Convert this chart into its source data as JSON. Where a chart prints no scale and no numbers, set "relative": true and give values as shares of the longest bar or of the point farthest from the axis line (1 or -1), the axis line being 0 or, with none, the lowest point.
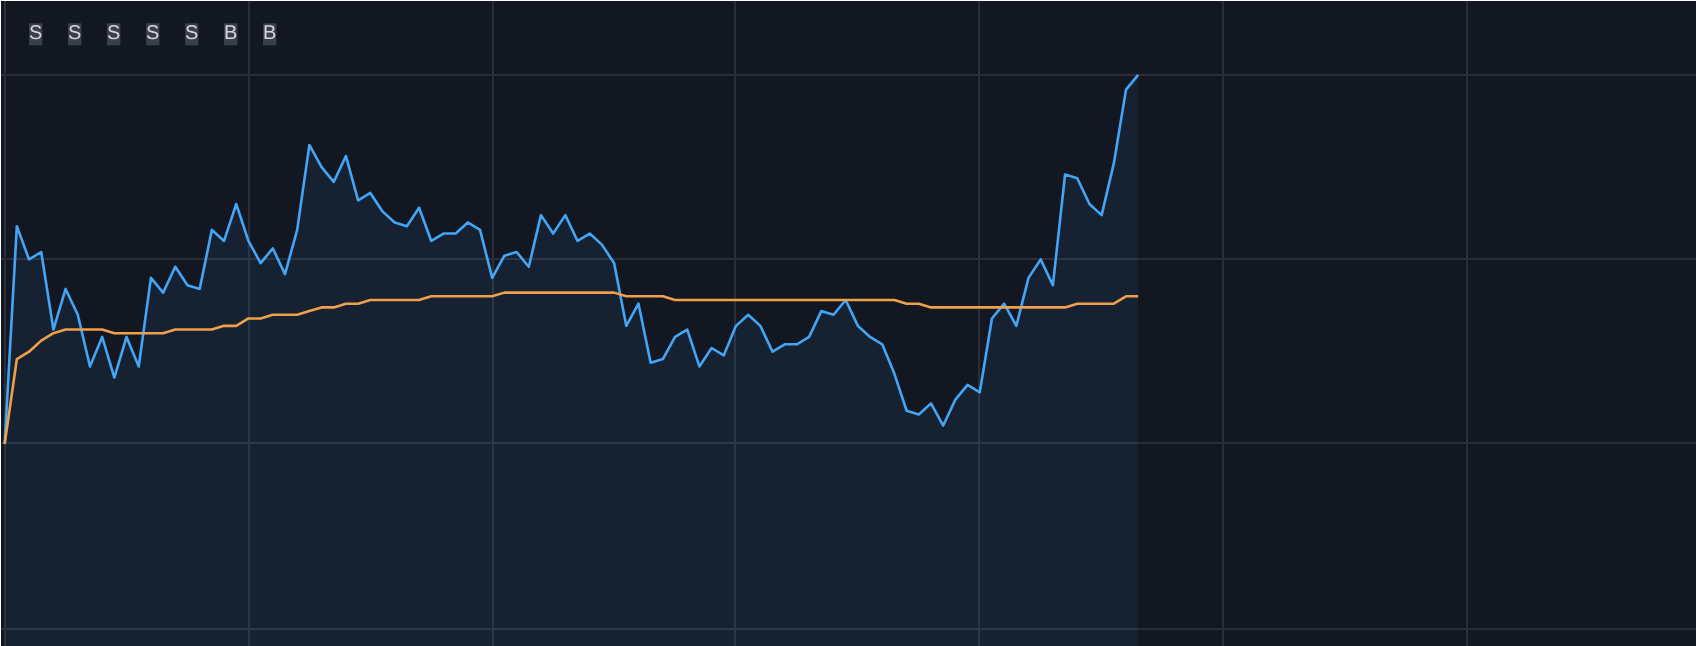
{
  "chart_data": {
    "type": "line",
    "relative": true,
    "grid": true,
    "tick_labels": false,
    "categories": [
      null,
      null,
      null,
      null,
      null,
      null,
      null,
      null,
      null,
      null,
      null,
      null,
      null,
      null,
      null,
      null,
      null,
      null,
      null,
      null,
      null,
      null,
      null,
      null,
      null,
      null,
      null,
      null,
      null,
      null,
      null,
      null,
      null,
      null,
      null,
      null,
      null,
      null,
      null,
      null,
      null,
      null,
      null,
      null,
      null,
      null,
      null,
      null,
      null,
      null,
      null,
      null,
      null,
      null,
      null,
      null,
      null,
      null,
      null,
      null,
      null,
      null,
      null,
      null,
      null,
      null,
      null,
      null,
      null,
      null,
      null,
      null,
      null,
      null,
      null,
      null,
      null,
      null,
      null,
      null,
      null,
      null,
      null,
      null,
      null,
      null,
      null,
      null,
      null,
      null,
      null,
      null,
      null,
      null
    ],
    "series": [
      {
        "type": "area",
        "color": "#42a5f5",
        "values": [
          0,
          0.59,
          0.5,
          0.52,
          0.31,
          0.42,
          0.35,
          0.21,
          0.29,
          0.18,
          0.29,
          0.21,
          0.45,
          0.41,
          0.48,
          0.43,
          0.42,
          0.58,
          0.55,
          0.65,
          0.55,
          0.49,
          0.53,
          0.46,
          0.58,
          0.81,
          0.75,
          0.71,
          0.78,
          0.66,
          0.68,
          0.63,
          0.6,
          0.59,
          0.64,
          0.55,
          0.57,
          0.57,
          0.6,
          0.58,
          0.45,
          0.51,
          0.52,
          0.48,
          0.62,
          0.57,
          0.62,
          0.55,
          0.57,
          0.54,
          0.49,
          0.32,
          0.38,
          0.22,
          0.23,
          0.29,
          0.31,
          0.21,
          0.26,
          0.24,
          0.32,
          0.35,
          0.32,
          0.25,
          0.27,
          0.27,
          0.29,
          0.36,
          0.35,
          0.39,
          0.32,
          0.29,
          0.27,
          0.19,
          0.09,
          0.08,
          0.11,
          0.05,
          0.12,
          0.16,
          0.14,
          0.34,
          0.38,
          0.32,
          0.45,
          0.5,
          0.43,
          0.73,
          0.72,
          0.65,
          0.62,
          0.76,
          0.96,
          1
        ]
      },
      {
        "color": "#f0a04b",
        "values": [
          0,
          0.23,
          0.25,
          0.28,
          0.3,
          0.31,
          0.31,
          0.31,
          0.31,
          0.3,
          0.3,
          0.3,
          0.3,
          0.3,
          0.31,
          0.31,
          0.31,
          0.31,
          0.32,
          0.32,
          0.34,
          0.34,
          0.35,
          0.35,
          0.35,
          0.36,
          0.37,
          0.37,
          0.38,
          0.38,
          0.39,
          0.39,
          0.39,
          0.39,
          0.39,
          0.4,
          0.4,
          0.4,
          0.4,
          0.4,
          0.4,
          0.41,
          0.41,
          0.41,
          0.41,
          0.41,
          0.41,
          0.41,
          0.41,
          0.41,
          0.41,
          0.4,
          0.4,
          0.4,
          0.4,
          0.39,
          0.39,
          0.39,
          0.39,
          0.39,
          0.39,
          0.39,
          0.39,
          0.39,
          0.39,
          0.39,
          0.39,
          0.39,
          0.39,
          0.39,
          0.39,
          0.39,
          0.39,
          0.39,
          0.38,
          0.38,
          0.37,
          0.37,
          0.37,
          0.37,
          0.37,
          0.37,
          0.37,
          0.37,
          0.37,
          0.37,
          0.37,
          0.37,
          0.38,
          0.38,
          0.38,
          0.38,
          0.4,
          0.4
        ]
      }
    ],
    "annotations": [
      "S",
      "S",
      "S",
      "S",
      "S",
      "B",
      "B"
    ]
  }
}
